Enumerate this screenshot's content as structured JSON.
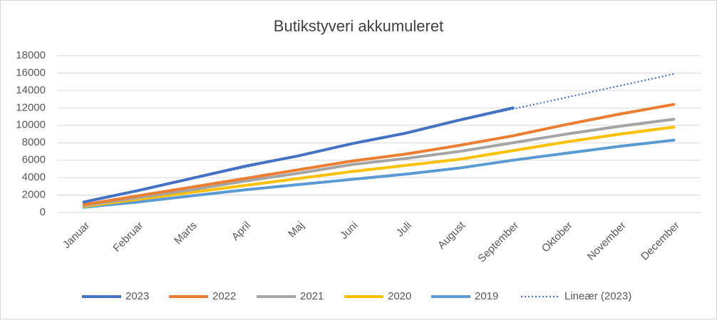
{
  "chart_data": {
    "type": "line",
    "title": "Butikstyveri akkumuleret",
    "categories": [
      "Januar",
      "Februar",
      "Marts",
      "April",
      "Maj",
      "Juni",
      "Juli",
      "August",
      "September",
      "Oktober",
      "November",
      "December"
    ],
    "series": [
      {
        "name": "2023",
        "color": "#4472c4",
        "values": [
          1200,
          2500,
          3900,
          5300,
          6500,
          7900,
          9100,
          10600,
          12000,
          null,
          null,
          null
        ]
      },
      {
        "name": "2022",
        "color": "#ed7d31",
        "values": [
          900,
          1900,
          2900,
          3900,
          4900,
          5900,
          6700,
          7700,
          8800,
          10100,
          11300,
          12400
        ]
      },
      {
        "name": "2021",
        "color": "#a5a5a5",
        "values": [
          800,
          1700,
          2600,
          3600,
          4500,
          5500,
          6200,
          7000,
          8000,
          9000,
          9900,
          10700
        ]
      },
      {
        "name": "2020",
        "color": "#ffc000",
        "values": [
          700,
          1500,
          2300,
          3100,
          3900,
          4700,
          5400,
          6100,
          7100,
          8100,
          9000,
          9800
        ]
      },
      {
        "name": "2019",
        "color": "#5b9bd5",
        "values": [
          600,
          1200,
          1900,
          2600,
          3200,
          3800,
          4400,
          5100,
          6000,
          6800,
          7600,
          8300
        ]
      },
      {
        "name": "Lineær (2023)",
        "color": "#4472c4",
        "dashed": true,
        "values": [
          1150,
          2490,
          3830,
          5170,
          6510,
          7850,
          9190,
          10530,
          11870,
          13210,
          14550,
          15890
        ]
      }
    ],
    "ylim": [
      0,
      18000
    ],
    "yticks": [
      0,
      2000,
      4000,
      6000,
      8000,
      10000,
      12000,
      14000,
      16000,
      18000
    ],
    "grid": true,
    "legend": "bottom"
  }
}
